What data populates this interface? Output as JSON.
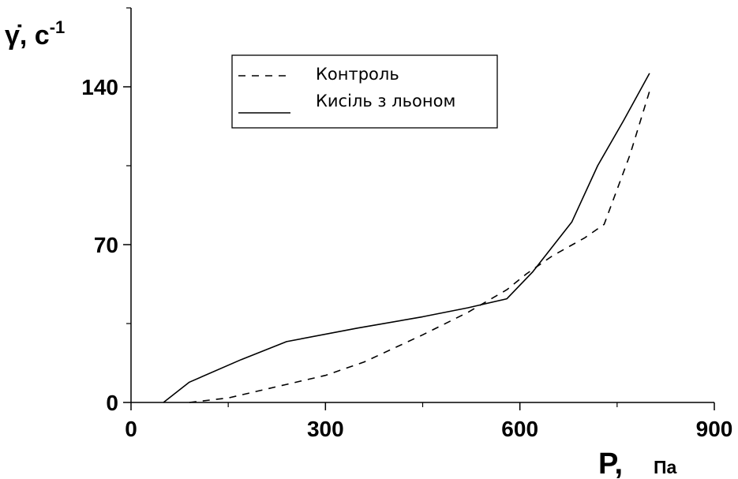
{
  "chart_data": {
    "type": "line",
    "xlabel": "P,",
    "xunit": "Па",
    "ylabel": "γ̇, с",
    "ylabel_exp": "-1",
    "xlim": [
      0,
      900
    ],
    "ylim": [
      0,
      175
    ],
    "xticks": [
      0,
      300,
      600,
      900
    ],
    "yticks": [
      0,
      70,
      140
    ],
    "grid": false,
    "legend_position": "top-center",
    "series": [
      {
        "name": "Контроль",
        "style": "dashed",
        "x": [
          90,
          150,
          240,
          300,
          360,
          450,
          520,
          580,
          610,
          650,
          700,
          730,
          770,
          800
        ],
        "y": [
          0,
          2,
          8,
          12,
          18,
          30,
          40,
          50,
          57,
          65,
          73,
          79,
          110,
          138
        ]
      },
      {
        "name": "Кисіль з льоном",
        "style": "solid",
        "x": [
          50,
          90,
          170,
          240,
          350,
          450,
          520,
          580,
          620,
          680,
          720,
          760,
          800
        ],
        "y": [
          0,
          9,
          19,
          27,
          33,
          38,
          42,
          46,
          58,
          80,
          105,
          125,
          146
        ]
      }
    ]
  }
}
